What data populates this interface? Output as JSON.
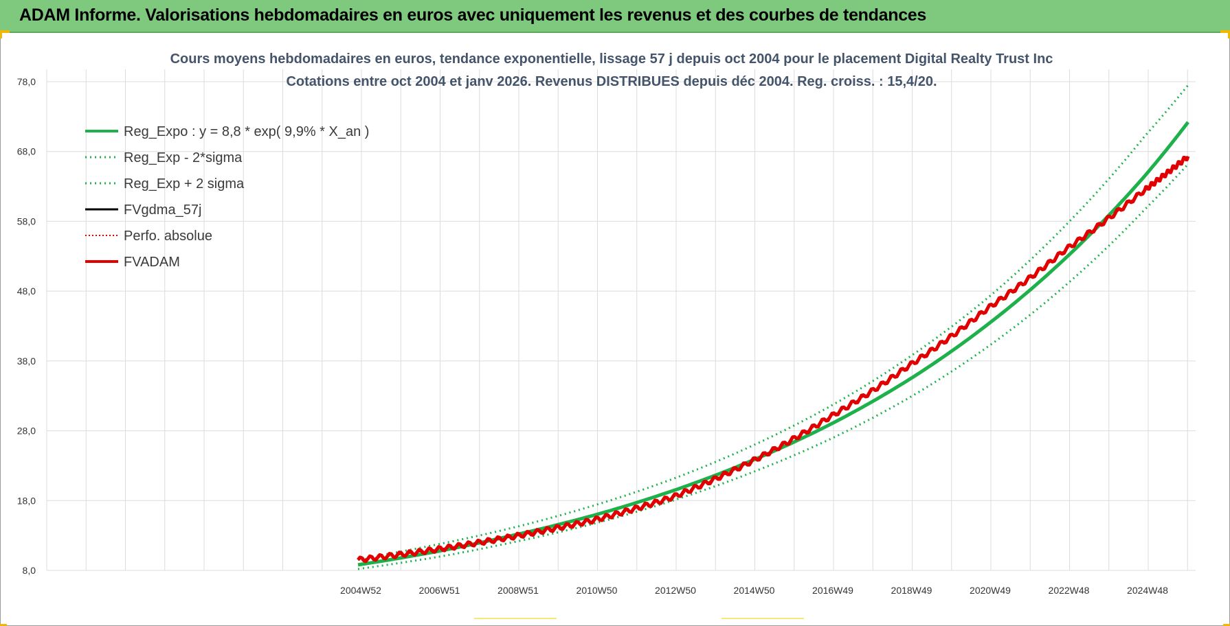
{
  "header": {
    "title": "ADAM Informe. Valorisations hebdomadaires en euros avec uniquement les revenus et des courbes de tendances"
  },
  "colors": {
    "header_bg": "#7fc97f",
    "trend": "#1db04b",
    "band": "#1db04b",
    "gdma": "#000000",
    "perfo": "#e00000",
    "fvadam": "#e00000",
    "grid": "#dcdcdc"
  },
  "chart_data": {
    "type": "line",
    "title": "Cours moyens hebdomadaires en euros, tendance exponentielle, lissage 57 j depuis oct 2004 pour le placement Digital Realty Trust Inc",
    "subtitle": "Cotations entre oct 2004 et janv 2026. Revenus DISTRIBUES depuis déc 2004. Reg. croiss. : 15,4/20.",
    "ylim": [
      8.0,
      78.0
    ],
    "y_ticks": [
      "78,0",
      "68,0",
      "58,0",
      "48,0",
      "38,0",
      "28,0",
      "18,0",
      "8,0"
    ],
    "x_ticks": [
      "2004W52",
      "2006W51",
      "2008W51",
      "2010W50",
      "2012W50",
      "2014W50",
      "2016W49",
      "2018W49",
      "2020W49",
      "2022W48",
      "2024W48"
    ],
    "x_range_years": [
      2004.9,
      2026.0
    ],
    "series": [
      {
        "name": "Reg_Expo : y = 8,8 * exp( 9,9% *  X_an )",
        "style": "solid-thick",
        "x": [
          2004.9,
          2006.9,
          2008.9,
          2010.9,
          2012.9,
          2014.9,
          2016.9,
          2018.9,
          2020.9,
          2022.9,
          2024.9,
          2026.0
        ],
        "values": [
          8.8,
          10.7,
          13.1,
          15.9,
          19.4,
          23.7,
          28.9,
          35.3,
          43.2,
          52.8,
          64.5,
          72.2
        ]
      },
      {
        "name": "Reg_Exp - 2*sigma",
        "style": "dotted",
        "x": [
          2004.9,
          2006.9,
          2008.9,
          2010.9,
          2012.9,
          2014.9,
          2016.9,
          2018.9,
          2020.9,
          2022.9,
          2024.9,
          2026.0
        ],
        "values": [
          8.2,
          9.9,
          12.1,
          14.7,
          18.0,
          22.0,
          26.8,
          32.7,
          40.0,
          48.9,
          59.7,
          66.2
        ]
      },
      {
        "name": "Reg_Exp + 2 sigma",
        "style": "dotted",
        "x": [
          2004.9,
          2006.9,
          2008.9,
          2010.9,
          2012.9,
          2014.9,
          2016.9,
          2018.9,
          2020.9,
          2022.9,
          2024.9,
          2026.0
        ],
        "values": [
          9.6,
          11.7,
          14.2,
          17.3,
          21.1,
          25.8,
          31.5,
          38.5,
          47.0,
          57.5,
          70.2,
          77.5
        ]
      },
      {
        "name": "FVgdma_57j",
        "style": "solid",
        "x": [],
        "values": []
      },
      {
        "name": "Perfo. absolue",
        "style": "dotted-red",
        "x": [
          2004.9,
          2006.9,
          2008.9,
          2010.9,
          2012.9,
          2014.9,
          2016.9,
          2018.9,
          2020.9,
          2022.9,
          2024.9,
          2026.0
        ],
        "values": [
          9.5,
          11.0,
          12.9,
          15.2,
          18.5,
          23.6,
          30.0,
          37.3,
          45.5,
          54.0,
          62.5,
          67.3
        ]
      },
      {
        "name": "FVADAM",
        "style": "solid-thick-red",
        "x": [
          2004.9,
          2006.9,
          2008.9,
          2010.9,
          2012.9,
          2014.9,
          2016.9,
          2018.9,
          2020.9,
          2022.9,
          2024.9,
          2026.0
        ],
        "values": [
          9.5,
          11.0,
          12.9,
          15.2,
          18.5,
          23.6,
          30.0,
          37.3,
          45.5,
          54.0,
          62.5,
          67.3
        ]
      }
    ],
    "legend_placement": "top-left",
    "grid": true
  }
}
